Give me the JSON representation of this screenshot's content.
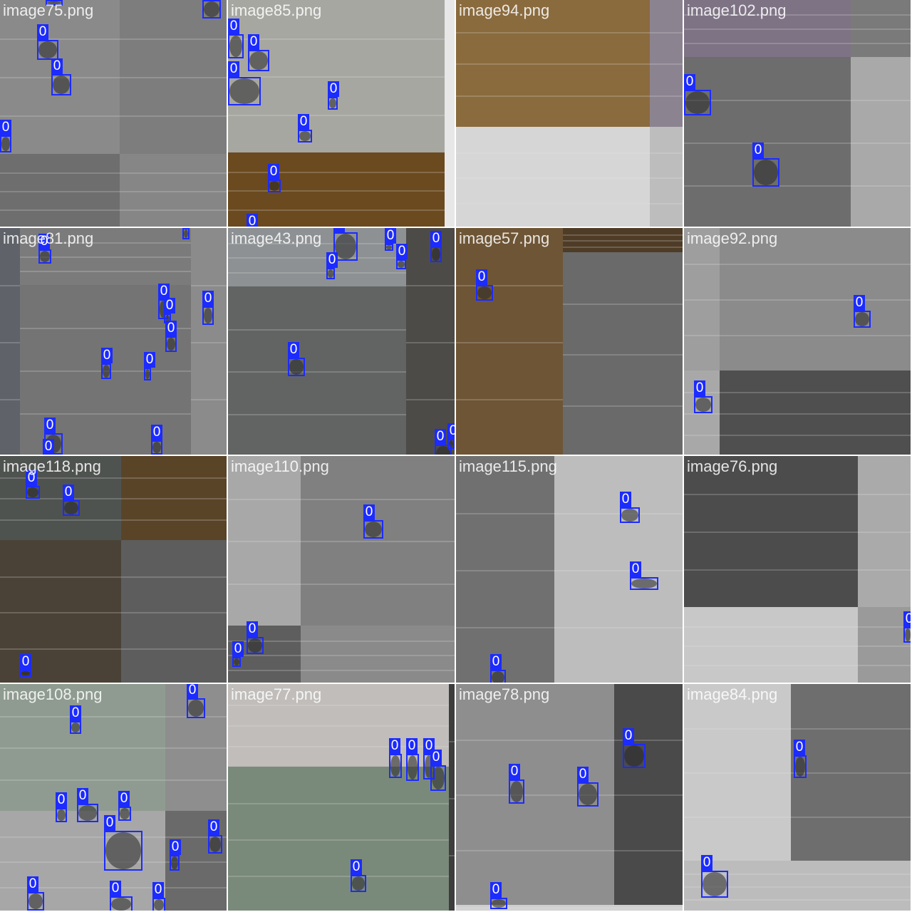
{
  "palette": {
    "box_color": "#1c2bff",
    "label_text_color": "#ffffff",
    "filename_color": "rgba(255,255,255,0.85)"
  },
  "tiles": [
    {
      "filename": "image75.png",
      "subimages": [
        {
          "bg": "#8a8a8a"
        },
        {
          "bg": "#7d7d7d"
        },
        {
          "bg": "#6e6e6e"
        },
        {
          "bg": "#868686"
        }
      ],
      "boxes": [
        {
          "label": "0"
        },
        {
          "label": "0"
        },
        {
          "label": "0"
        },
        {
          "label": "0"
        },
        {
          "label": "0"
        }
      ]
    },
    {
      "filename": "image85.png",
      "subimages": [
        {
          "bg": "#a7a7a2"
        },
        {
          "bg": "#6b4a1f"
        },
        {
          "bg": "#e7e7e7"
        }
      ],
      "boxes": [
        {
          "label": "0"
        },
        {
          "label": "0"
        },
        {
          "label": "0"
        },
        {
          "label": "0"
        },
        {
          "label": "0"
        },
        {
          "label": "0"
        },
        {
          "label": "0"
        }
      ]
    },
    {
      "filename": "image94.png",
      "subimages": [
        {
          "bg": "#8a6b3e"
        },
        {
          "bg": "#8c8390"
        },
        {
          "bg": "#d6d6d6"
        },
        {
          "bg": "#bdbdbd"
        }
      ],
      "boxes": []
    },
    {
      "filename": "image102.png",
      "subimages": [
        {
          "bg": "#7e7385"
        },
        {
          "bg": "#6d6d6d"
        },
        {
          "bg": "#7a7a7a"
        },
        {
          "bg": "#a9a9a9"
        }
      ],
      "boxes": [
        {
          "label": "0"
        },
        {
          "label": "0"
        }
      ]
    },
    {
      "filename": "image81.png",
      "subimages": [
        {
          "bg": "#5f6268"
        },
        {
          "bg": "#7b7b7b"
        },
        {
          "bg": "#747474"
        },
        {
          "bg": "#8b8b8b"
        }
      ],
      "boxes": [
        {
          "label": "0"
        },
        {
          "label": "0"
        },
        {
          "label": "0"
        },
        {
          "label": "0"
        },
        {
          "label": "0"
        },
        {
          "label": "0"
        },
        {
          "label": "0"
        },
        {
          "label": "0"
        },
        {
          "label": "0"
        },
        {
          "label": "0"
        },
        {
          "label": "0"
        }
      ]
    },
    {
      "filename": "image43.png",
      "subimages": [
        {
          "bg": "#8d9193"
        },
        {
          "bg": "#626464"
        },
        {
          "bg": "#4d4b48"
        }
      ],
      "boxes": [
        {
          "label": "0"
        },
        {
          "label": "0"
        },
        {
          "label": "0"
        },
        {
          "label": "0"
        },
        {
          "label": "0"
        },
        {
          "label": "0"
        },
        {
          "label": "0"
        },
        {
          "label": "0"
        },
        {
          "label": "0"
        }
      ]
    },
    {
      "filename": "image57.png",
      "subimages": [
        {
          "bg": "#6e5535"
        },
        {
          "bg": "#4e3c26"
        },
        {
          "bg": "#6a6a6a"
        }
      ],
      "boxes": [
        {
          "label": "0"
        }
      ]
    },
    {
      "filename": "image92.png",
      "subimages": [
        {
          "bg": "#9e9e9e"
        },
        {
          "bg": "#8b8b8b"
        },
        {
          "bg": "#a8a8a8"
        },
        {
          "bg": "#4f4f4f"
        }
      ],
      "boxes": [
        {
          "label": "0"
        },
        {
          "label": "0"
        }
      ]
    },
    {
      "filename": "image118.png",
      "subimages": [
        {
          "bg": "#4f5350"
        },
        {
          "bg": "#5a4428"
        },
        {
          "bg": "#4a4237"
        },
        {
          "bg": "#5d5d5d"
        }
      ],
      "boxes": [
        {
          "label": "0"
        },
        {
          "label": "0"
        },
        {
          "label": "0"
        }
      ]
    },
    {
      "filename": "image110.png",
      "subimages": [
        {
          "bg": "#a8a8a8"
        },
        {
          "bg": "#808080"
        },
        {
          "bg": "#5e5e5e"
        },
        {
          "bg": "#8a8a8a"
        }
      ],
      "boxes": [
        {
          "label": "0"
        },
        {
          "label": "0"
        },
        {
          "label": "0"
        }
      ]
    },
    {
      "filename": "image115.png",
      "subimages": [
        {
          "bg": "#707070"
        },
        {
          "bg": "#bdbdbd"
        }
      ],
      "boxes": [
        {
          "label": "0"
        },
        {
          "label": "0"
        },
        {
          "label": "0"
        }
      ]
    },
    {
      "filename": "image76.png",
      "subimages": [
        {
          "bg": "#4c4c4c"
        },
        {
          "bg": "#aaaaaa"
        },
        {
          "bg": "#c8c8c8"
        },
        {
          "bg": "#9a9a9a"
        }
      ],
      "boxes": [
        {
          "label": "0"
        }
      ]
    },
    {
      "filename": "image108.png",
      "subimages": [
        {
          "bg": "#8f9b90"
        },
        {
          "bg": "#8e8e8e"
        },
        {
          "bg": "#a7a7a7"
        },
        {
          "bg": "#6a6a6a"
        }
      ],
      "boxes": [
        {
          "label": "0"
        },
        {
          "label": "0"
        },
        {
          "label": "0"
        },
        {
          "label": "0"
        },
        {
          "label": "0"
        },
        {
          "label": "0"
        },
        {
          "label": "0"
        },
        {
          "label": "0"
        },
        {
          "label": "0"
        },
        {
          "label": "0"
        },
        {
          "label": "0"
        },
        {
          "label": "0"
        }
      ]
    },
    {
      "filename": "image77.png",
      "subimages": [
        {
          "bg": "#c0bdba"
        },
        {
          "bg": "#7a8a7a"
        },
        {
          "bg": "#3d3d3d"
        }
      ],
      "boxes": [
        {
          "label": "0"
        },
        {
          "label": "0"
        },
        {
          "label": "0"
        },
        {
          "label": "0"
        },
        {
          "label": "0"
        }
      ]
    },
    {
      "filename": "image78.png",
      "subimages": [
        {
          "bg": "#8e8e8e"
        },
        {
          "bg": "#4a4a4a"
        },
        {
          "bg": "#cfcfcf"
        }
      ],
      "boxes": [
        {
          "label": "0"
        },
        {
          "label": "0"
        },
        {
          "label": "0"
        },
        {
          "label": "0"
        }
      ]
    },
    {
      "filename": "image84.png",
      "subimages": [
        {
          "bg": "#c9c9c9"
        },
        {
          "bg": "#6e6e6e"
        },
        {
          "bg": "#bcbcbc"
        }
      ],
      "boxes": [
        {
          "label": "0"
        },
        {
          "label": "0"
        }
      ]
    }
  ]
}
